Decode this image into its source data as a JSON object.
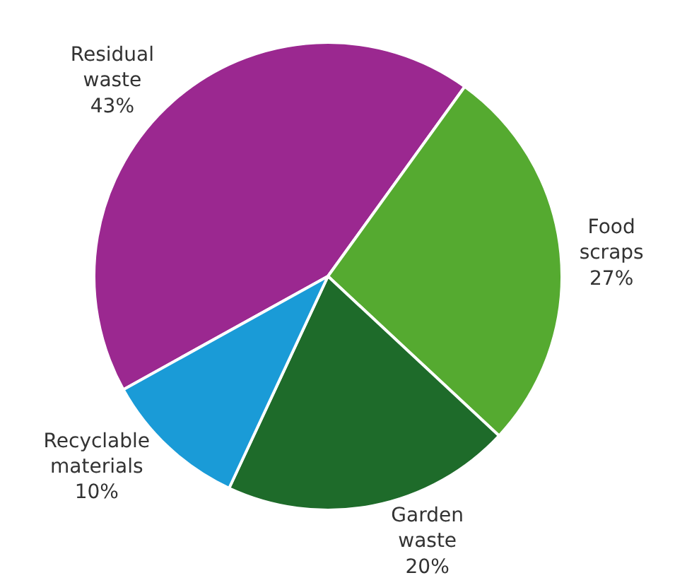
{
  "chart_data": {
    "type": "pie",
    "categories": [
      "Residual waste",
      "Food scraps",
      "Garden waste",
      "Recyclable materials"
    ],
    "values": [
      43,
      27,
      20,
      10
    ],
    "value_labels": [
      "43%",
      "27%",
      "20%",
      "10%"
    ],
    "colors": [
      "#9b2890",
      "#55aa30",
      "#1e6b2a",
      "#1a9bd7"
    ],
    "legend": false
  }
}
